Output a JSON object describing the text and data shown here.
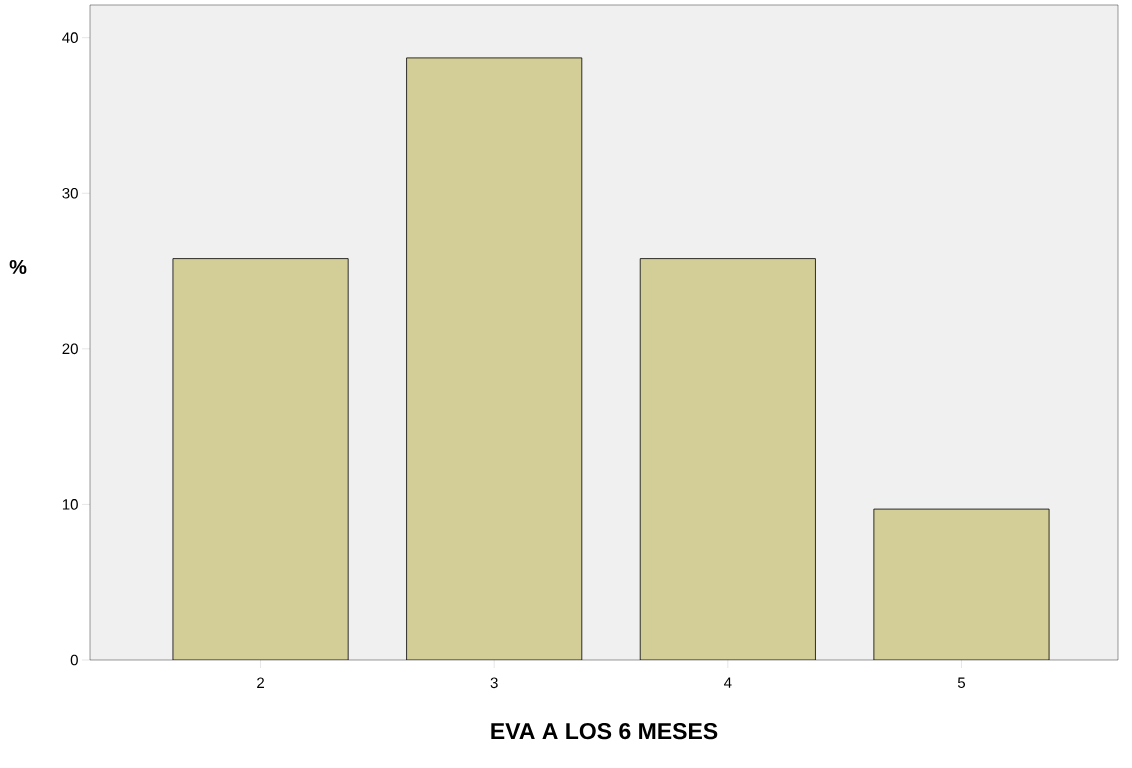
{
  "chart_data": {
    "type": "bar",
    "xlabel": "EVA A LOS 6 MESES",
    "ylabel": "%",
    "categories": [
      "2",
      "3",
      "4",
      "5"
    ],
    "values": [
      25.8,
      38.7,
      25.8,
      9.7
    ],
    "color": "#d3ce97",
    "ylim": [
      0,
      42.1
    ],
    "yticks": [
      0,
      10,
      20,
      30,
      40
    ],
    "grid": false
  }
}
